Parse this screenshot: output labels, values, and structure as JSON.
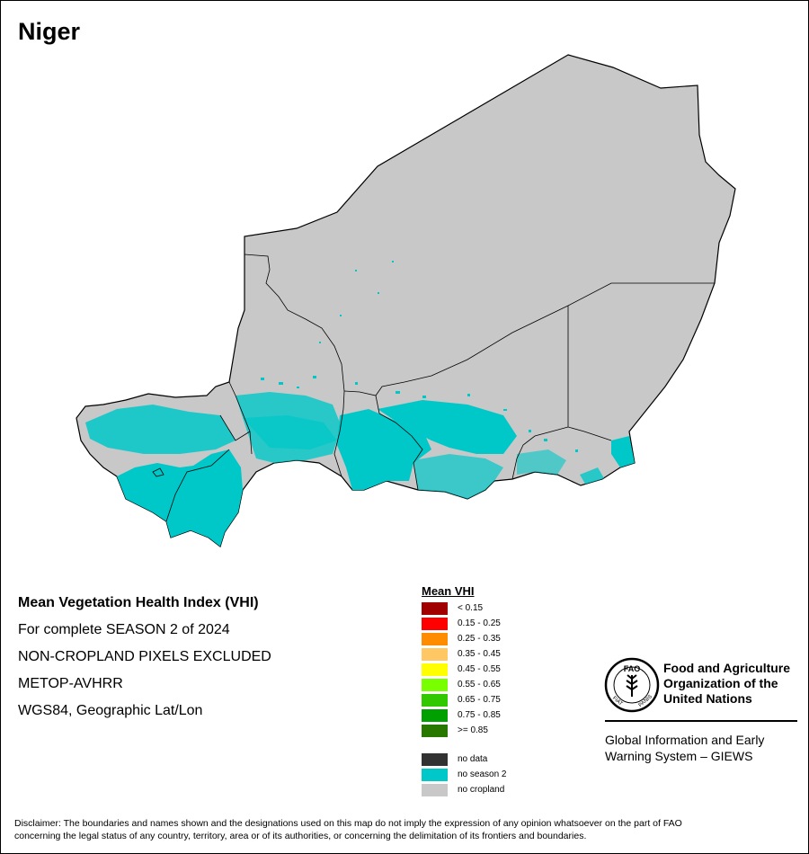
{
  "map": {
    "title": "Niger",
    "colors": {
      "country_fill": "#c8c8c8",
      "border": "#000000",
      "no_season_2": "#00c8c8"
    }
  },
  "info": {
    "line1": "Mean Vegetation Health Index (VHI)",
    "line2": "For complete SEASON 2 of 2024",
    "line3": "NON-CROPLAND PIXELS EXCLUDED",
    "line4": "METOP-AVHRR",
    "line5": "WGS84, Geographic Lat/Lon"
  },
  "legend": {
    "title": "Mean VHI",
    "classes": [
      {
        "label": "< 0.15",
        "color": "#a00000"
      },
      {
        "label": "0.15 - 0.25",
        "color": "#ff0000"
      },
      {
        "label": "0.25 - 0.35",
        "color": "#ff8c00"
      },
      {
        "label": "0.35 - 0.45",
        "color": "#ffc864"
      },
      {
        "label": "0.45 - 0.55",
        "color": "#ffff00"
      },
      {
        "label": "0.55 - 0.65",
        "color": "#78ff00"
      },
      {
        "label": "0.65 - 0.75",
        "color": "#32c800"
      },
      {
        "label": "0.75 - 0.85",
        "color": "#00a000"
      },
      {
        "label": ">= 0.85",
        "color": "#287800"
      }
    ],
    "extra": [
      {
        "label": "no data",
        "color": "#323232"
      },
      {
        "label": "no season 2",
        "color": "#00c8c8"
      },
      {
        "label": "no cropland",
        "color": "#c8c8c8"
      }
    ]
  },
  "fao": {
    "logo_text": {
      "top": "FAO",
      "left": "FIAT",
      "right": "PANIS"
    },
    "name_line1": "Food and Agriculture",
    "name_line2": "Organization of the",
    "name_line3": "United Nations",
    "giews_line1": "Global Information and Early",
    "giews_line2": "Warning System – GIEWS"
  },
  "disclaimer": {
    "line1": "Disclaimer: The boundaries and names shown and the designations used on this map do not imply the expression of any opinion whatsoever on the part of FAO",
    "line2": "concerning the legal status of any country, territory, area or of its authorities, or concerning the delimitation of its frontiers and boundaries."
  }
}
